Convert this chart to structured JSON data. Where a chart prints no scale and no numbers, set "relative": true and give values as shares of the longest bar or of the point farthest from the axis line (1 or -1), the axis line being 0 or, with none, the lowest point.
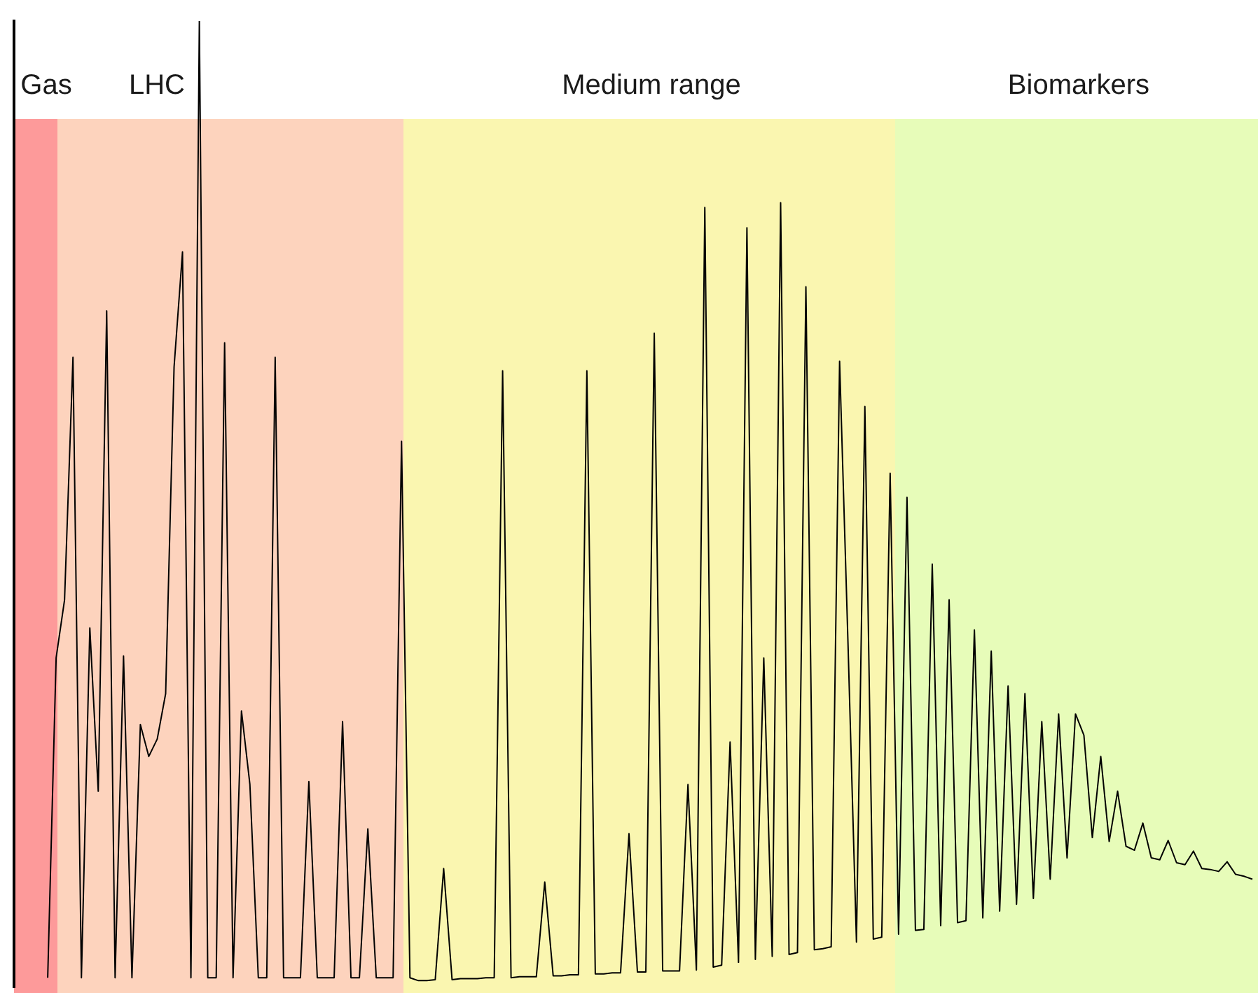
{
  "chart_data": {
    "type": "line",
    "relative": true,
    "annotations": [
      "Gas",
      "LHC",
      "Medium range",
      "Biomarkers"
    ],
    "categories": [
      null,
      null,
      null,
      null,
      null,
      null,
      null,
      null,
      null,
      null,
      null,
      null,
      null,
      null,
      null,
      null,
      null,
      null,
      null,
      null,
      null,
      null,
      null,
      null,
      null,
      null,
      null,
      null,
      null,
      null,
      null,
      null,
      null,
      null,
      null,
      null,
      null,
      null,
      null,
      null,
      null,
      null,
      null,
      null,
      null,
      null,
      null,
      null,
      null,
      null,
      null,
      null,
      null,
      null,
      null,
      null,
      null,
      null,
      null,
      null,
      null,
      null,
      null,
      null,
      null,
      null,
      null,
      null,
      null,
      null,
      null,
      null,
      null,
      null,
      null,
      null,
      null,
      null,
      null,
      null,
      null,
      null,
      null,
      null,
      null,
      null,
      null,
      null,
      null,
      null,
      null,
      null,
      null,
      null,
      null,
      null,
      null,
      null,
      null,
      null,
      null,
      null,
      null,
      null,
      null,
      null,
      null,
      null,
      null,
      null,
      null,
      null,
      null,
      null,
      null,
      null,
      null,
      null,
      null,
      null,
      null,
      null,
      null,
      null,
      null,
      null,
      null,
      null,
      null,
      null,
      null,
      null,
      null,
      null,
      null,
      null,
      null,
      null,
      null,
      null,
      null,
      null,
      null,
      null,
      null,
      null,
      null,
      null
    ],
    "series": [
      {
        "color": "#000000",
        "values": [
          null,
          null,
          null,
          null,
          0.01,
          0.341,
          0.401,
          0.652,
          0.01,
          0.372,
          0.203,
          0.7,
          0.01,
          0.343,
          0.01,
          0.272,
          0.239,
          0.257,
          0.304,
          0.642,
          0.761,
          0.01,
          1,
          0.01,
          0.01,
          0.667,
          0.01,
          0.286,
          0.21,
          0.01,
          0.01,
          0.652,
          0.01,
          0.01,
          0.01,
          0.213,
          0.01,
          0.01,
          0.01,
          0.275,
          0.01,
          0.01,
          0.164,
          0.01,
          0.01,
          0.01,
          0.565,
          0.01,
          0.007,
          0.007,
          0.008,
          0.123,
          0.008,
          0.009,
          0.009,
          0.009,
          0.01,
          0.01,
          0.638,
          0.01,
          0.011,
          0.011,
          0.011,
          0.109,
          0.012,
          0.012,
          0.013,
          0.013,
          0.638,
          0.014,
          0.014,
          0.015,
          0.015,
          0.159,
          0.016,
          0.016,
          0.677,
          0.017,
          0.017,
          0.017,
          0.21,
          0.018,
          0.807,
          0.021,
          0.023,
          0.254,
          0.026,
          0.786,
          0.029,
          0.341,
          0.032,
          0.812,
          0.034,
          0.036,
          0.725,
          0.039,
          0.04,
          0.042,
          0.648,
          0.355,
          0.047,
          0.601,
          0.05,
          0.052,
          0.532,
          0.055,
          0.507,
          0.059,
          0.06,
          0.438,
          0.064,
          0.401,
          0.067,
          0.069,
          0.37,
          0.072,
          0.348,
          0.079,
          0.312,
          0.086,
          0.304,
          0.092,
          0.275,
          0.112,
          0.283,
          0.134,
          0.283,
          0.261,
          0.155,
          0.239,
          0.151,
          0.203,
          0.146,
          0.142,
          0.17,
          0.134,
          0.132,
          0.152,
          0.129,
          0.127,
          0.141,
          0.123,
          0.122,
          0.12,
          0.13,
          0.117,
          0.115,
          0.112
        ]
      }
    ]
  }
}
